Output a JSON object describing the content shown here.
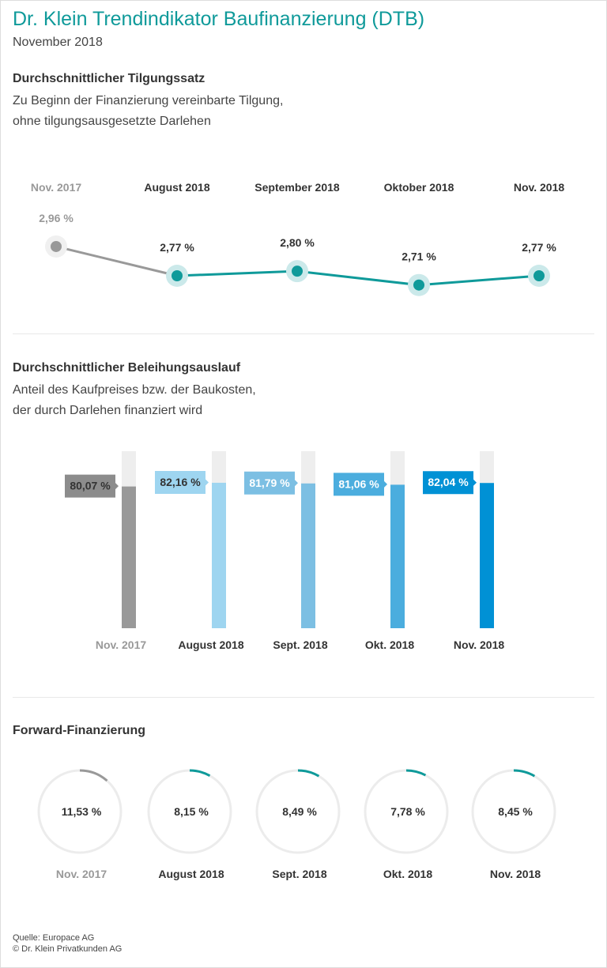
{
  "header": {
    "title": "Dr. Klein Trendindikator Baufinanzierung (DTB)",
    "subtitle": "November 2018"
  },
  "colors": {
    "accent": "#0f9a9a",
    "previous": "#999999",
    "track": "#ececec"
  },
  "chart_data": [
    {
      "type": "line",
      "title": "Durchschnittlicher Tilgungssatz",
      "description": [
        "Zu Beginn der Finanzierung vereinbarte Tilgung,",
        "ohne tilgungsausgesetzte Darlehen"
      ],
      "categories": [
        "Nov. 2017",
        "August 2018",
        "September 2018",
        "Oktober 2018",
        "Nov. 2018"
      ],
      "values": [
        2.96,
        2.77,
        2.8,
        2.71,
        2.77
      ],
      "labels": [
        "2,96 %",
        "2,77 %",
        "2,80 %",
        "2,71 %",
        "2,77 %"
      ],
      "unit": "%"
    },
    {
      "type": "bar",
      "title": "Durchschnittlicher Beleihungsauslauf",
      "description": [
        "Anteil des Kaufpreises bzw. der Baukosten,",
        "der durch Darlehen finanziert wird"
      ],
      "categories": [
        "Nov. 2017",
        "August 2018",
        "Sept. 2018",
        "Okt. 2018",
        "Nov. 2018"
      ],
      "values": [
        80.07,
        82.16,
        81.79,
        81.06,
        82.04
      ],
      "labels": [
        "80,07 %",
        "82,16 %",
        "81,79 %",
        "81,06 %",
        "82,04 %"
      ],
      "ylim": [
        0,
        100
      ],
      "bar_colors": [
        "#999999",
        "#9ed5f0",
        "#7cbfe3",
        "#4badde",
        "#0091d5"
      ],
      "label_colors": [
        "#8c8c8c",
        "#9ed5f0",
        "#7cbfe3",
        "#4badde",
        "#0091d5"
      ],
      "label_text_colors": [
        "#333333",
        "#333333",
        "#ffffff",
        "#ffffff",
        "#ffffff"
      ]
    },
    {
      "type": "pie",
      "title": "Forward-Finanzierung",
      "categories": [
        "Nov. 2017",
        "August 2018",
        "Sept. 2018",
        "Okt. 2018",
        "Nov. 2018"
      ],
      "values": [
        11.53,
        8.15,
        8.49,
        7.78,
        8.45
      ],
      "labels": [
        "11,53 %",
        "8,15 %",
        "8,49 %",
        "7,78 %",
        "8,45 %"
      ]
    }
  ],
  "footer": {
    "source": "Quelle: Europace AG",
    "copyright": "© Dr. Klein Privatkunden AG"
  }
}
